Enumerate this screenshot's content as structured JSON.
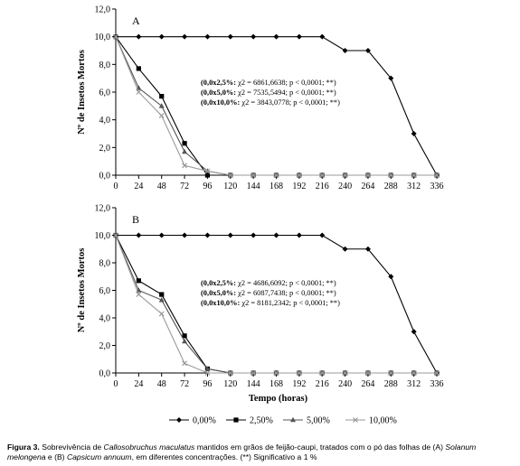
{
  "chart_data": [
    {
      "type": "line",
      "panel_label": "A",
      "x": [
        0,
        24,
        48,
        72,
        96,
        120,
        144,
        168,
        192,
        216,
        240,
        264,
        288,
        312,
        336
      ],
      "x_ticks": [
        "0",
        "24",
        "48",
        "72",
        "96",
        "120",
        "144",
        "168",
        "192",
        "216",
        "240",
        "264",
        "288",
        "312",
        "336"
      ],
      "y_ticks": [
        "0,0",
        "2,0",
        "4,0",
        "6,0",
        "8,0",
        "10,0",
        "12,0"
      ],
      "xlabel": "",
      "ylabel": "Nº de Insetos Mortos",
      "ylim": [
        0,
        12
      ],
      "series": [
        {
          "name": "0,00%",
          "marker": "diamond",
          "color": "#000000",
          "values": [
            10,
            10,
            10,
            10,
            10,
            10,
            10,
            10,
            10,
            10,
            9,
            9,
            7,
            3,
            0
          ]
        },
        {
          "name": "2,50%",
          "marker": "square",
          "color": "#000000",
          "values": [
            10,
            7.7,
            5.7,
            2.3,
            0,
            0,
            0,
            0,
            0,
            0,
            0,
            0,
            0,
            0,
            0
          ]
        },
        {
          "name": "5,00%",
          "marker": "triangle",
          "color": "#555555",
          "values": [
            10,
            6.3,
            5,
            1.7,
            0.3,
            0,
            0,
            0,
            0,
            0,
            0,
            0,
            0,
            0,
            0
          ]
        },
        {
          "name": "10,00%",
          "marker": "x",
          "color": "#999999",
          "values": [
            10,
            6,
            4.3,
            0.7,
            0.3,
            0,
            0,
            0,
            0,
            0,
            0,
            0,
            0,
            0,
            0
          ]
        }
      ],
      "annotation_lines": [
        {
          "label": "(0,0x2,5%:",
          "stats": " χ2 = 6861,6638; p < 0,0001; **)"
        },
        {
          "label": "(0,0x5,0%:",
          "stats": " χ2 = 7535,5494; p < 0,0001; **)"
        },
        {
          "label": "(0,0x10,0%:",
          "stats": " χ2 = 3843,0778; p < 0,0001; **)"
        }
      ]
    },
    {
      "type": "line",
      "panel_label": "B",
      "x": [
        0,
        24,
        48,
        72,
        96,
        120,
        144,
        168,
        192,
        216,
        240,
        264,
        288,
        312,
        336
      ],
      "x_ticks": [
        "0",
        "24",
        "48",
        "72",
        "96",
        "120",
        "144",
        "168",
        "192",
        "216",
        "240",
        "264",
        "288",
        "312",
        "336"
      ],
      "y_ticks": [
        "0,0",
        "2,0",
        "4,0",
        "6,0",
        "8,0",
        "10,0",
        "12,0"
      ],
      "xlabel": "Tempo (horas)",
      "ylabel": "Nº de Insetos Mortos",
      "ylim": [
        0,
        12
      ],
      "series": [
        {
          "name": "0,00%",
          "marker": "diamond",
          "color": "#000000",
          "values": [
            10,
            10,
            10,
            10,
            10,
            10,
            10,
            10,
            10,
            10,
            9,
            9,
            7,
            3,
            0
          ]
        },
        {
          "name": "2,50%",
          "marker": "square",
          "color": "#000000",
          "values": [
            10,
            6.7,
            5.7,
            2.7,
            0.3,
            0,
            0,
            0,
            0,
            0,
            0,
            0,
            0,
            0,
            0
          ]
        },
        {
          "name": "5,00%",
          "marker": "triangle",
          "color": "#555555",
          "values": [
            10,
            6,
            5.3,
            2.3,
            0.3,
            0,
            0,
            0,
            0,
            0,
            0,
            0,
            0,
            0,
            0
          ]
        },
        {
          "name": "10,00%",
          "marker": "x",
          "color": "#999999",
          "values": [
            10,
            5.7,
            4.3,
            0.7,
            0,
            0,
            0,
            0,
            0,
            0,
            0,
            0,
            0,
            0,
            0
          ]
        }
      ],
      "annotation_lines": [
        {
          "label": "(0,0x2,5%:",
          "stats": " χ2 = 4686,6092; p < 0,0001; **)"
        },
        {
          "label": "(0,0x5,0%:",
          "stats": " χ2 = 6087,7438; p < 0,0001; **)"
        },
        {
          "label": "(0,0x10,0%:",
          "stats": " χ2 = 8181,2342; p < 0,0001; **)"
        }
      ]
    }
  ],
  "legend": {
    "placement": "bottom",
    "entries": [
      {
        "name": "0,00%",
        "marker": "diamond",
        "color": "#000000"
      },
      {
        "name": "2,50%",
        "marker": "square",
        "color": "#000000"
      },
      {
        "name": "5,00%",
        "marker": "triangle",
        "color": "#555555"
      },
      {
        "name": "10,00%",
        "marker": "x",
        "color": "#999999"
      }
    ]
  },
  "caption": {
    "fig_label": "Figura 3.",
    "t1": " Sobrevivência de ",
    "species1": "Callosobruchus maculatus",
    "t2": " mantidos em grãos de feijão-caupi, tratados com o pó das folhas de (A) ",
    "species2": "Solanum melongena",
    "t3": " e (B) ",
    "species3": "Capsicum annuum",
    "t4": ", em diferentes concentrações. (**) Significativo a 1 %"
  }
}
